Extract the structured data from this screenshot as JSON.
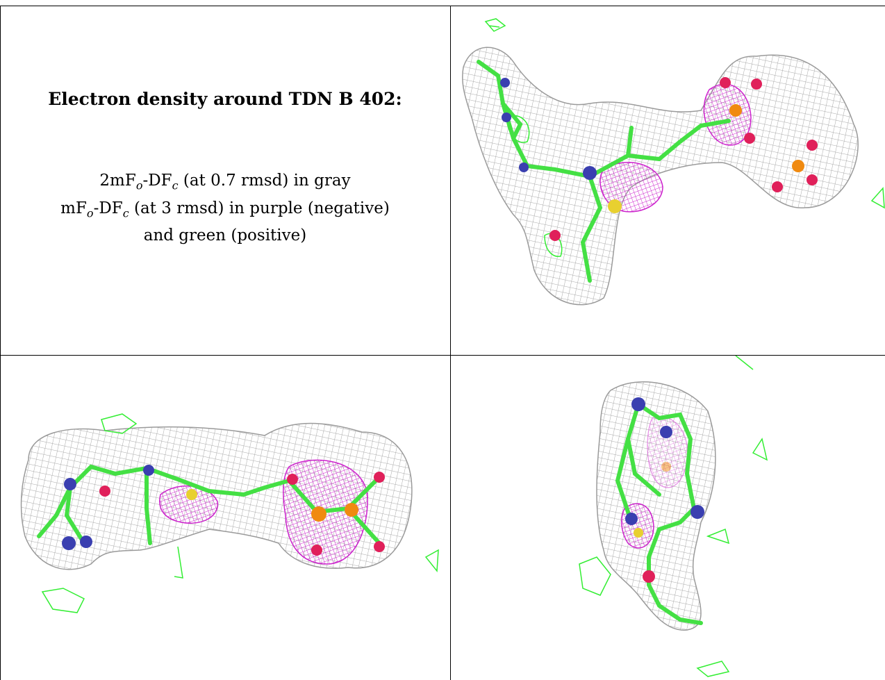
{
  "caption": {
    "title": "Electron density around TDN B 402:",
    "line1": {
      "prefix": "2mF",
      "sub_o": "o",
      "mid": "-DF",
      "sub_c": "c",
      "suffix": " (at 0.7 rmsd) in gray"
    },
    "line2": {
      "prefix": "mF",
      "sub_o": "o",
      "mid": "-DF",
      "sub_c": "c",
      "suffix": " (at 3 rmsd) in purple (negative)"
    },
    "line3": "and green (positive)"
  },
  "colors": {
    "mesh_gray": "#a8a8a8",
    "mesh_purple": "#cc22cc",
    "mesh_green": "#33ee33",
    "carbon": "#44e044",
    "nitrogen": "#3a3fb0",
    "oxygen": "#e0205a",
    "phosphorus": "#f08a10",
    "sulfur": "#e8d030"
  },
  "panels": [
    {
      "name": "view-top-right",
      "view": "front view"
    },
    {
      "name": "view-bottom-left",
      "view": "side view"
    },
    {
      "name": "view-bottom-right",
      "view": "end view"
    }
  ]
}
